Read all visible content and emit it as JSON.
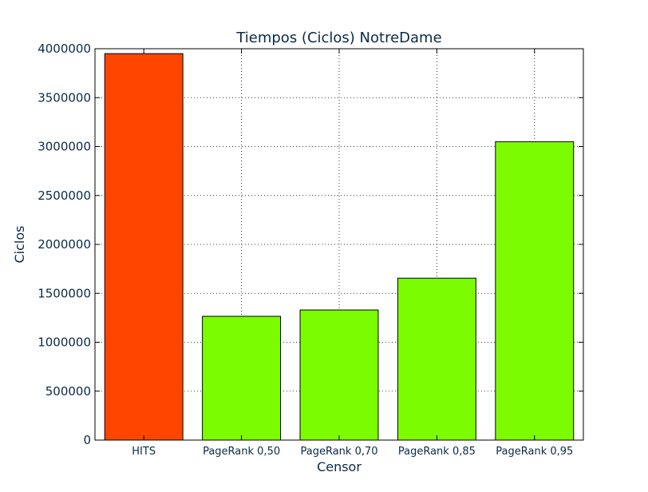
{
  "chart_data": {
    "type": "bar",
    "title": "Tiempos (Ciclos) NotreDame",
    "xlabel": "Censor",
    "ylabel": "Ciclos",
    "categories": [
      "HITS",
      "PageRank 0,50",
      "PageRank 0,70",
      "PageRank 0,85",
      "PageRank 0,95"
    ],
    "values": [
      3950000,
      1265000,
      1330000,
      1655000,
      3050000
    ],
    "colors": [
      "#ff4500",
      "#7cfc00",
      "#7cfc00",
      "#7cfc00",
      "#7cfc00"
    ],
    "ylim": [
      0,
      4000000
    ],
    "yticks": [
      0,
      500000,
      1000000,
      1500000,
      2000000,
      2500000,
      3000000,
      3500000,
      4000000
    ],
    "ytick_labels": [
      "0",
      "500000",
      "1000000",
      "1500000",
      "2000000",
      "2500000",
      "3000000",
      "3500000",
      "4000000"
    ],
    "grid": true,
    "text_color": "#0b2a4a",
    "edge_color": "#000000"
  }
}
